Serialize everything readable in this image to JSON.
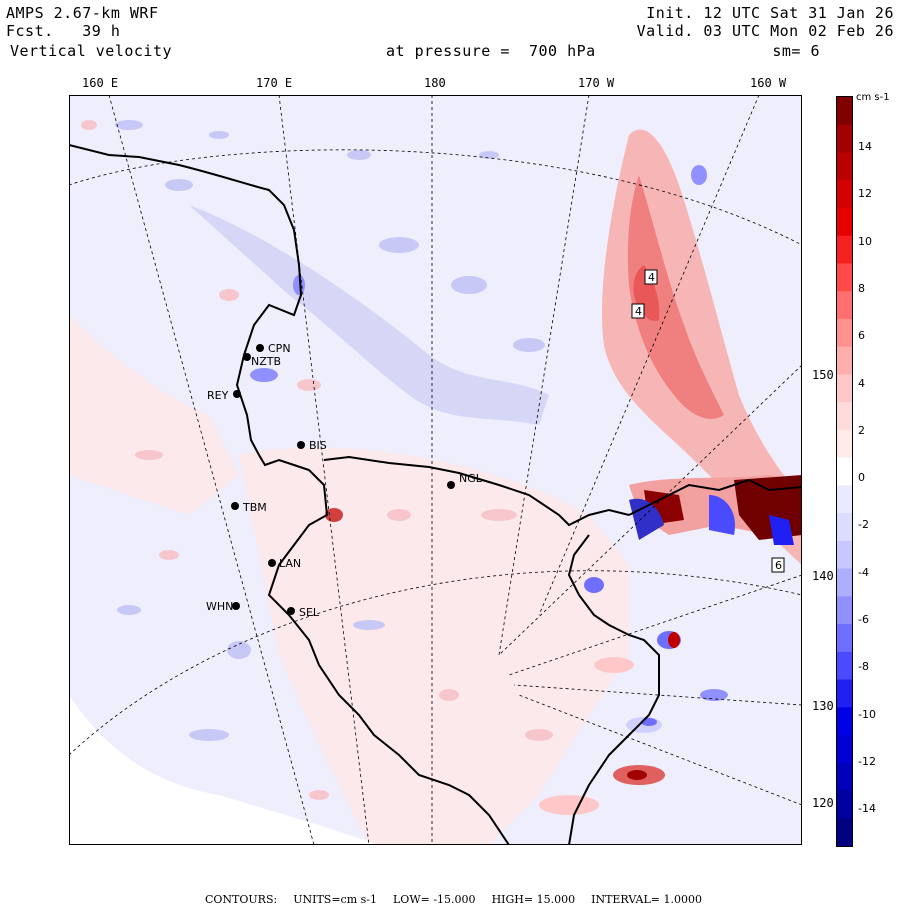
{
  "header": {
    "model": "AMPS 2.67-km WRF",
    "fcst_label": "Fcst.",
    "fcst_value": "39 h",
    "field": "Vertical velocity",
    "pressure_label": "at pressure =",
    "pressure_value": "700 hPa",
    "init": "Init. 12 UTC Sat 31 Jan 26",
    "valid": "Valid. 03 UTC Mon 02 Feb 26",
    "smoothing": "sm= 6"
  },
  "lon_labels": [
    "160 E",
    "170 E",
    "180",
    "170 W",
    "160 W"
  ],
  "lat_labels": [
    "150 W",
    "140 W",
    "130 W",
    "120 W"
  ],
  "stations": [
    "CPN",
    "NZTB",
    "REY",
    "BIS",
    "TBM",
    "NGL",
    "LAN",
    "WHN",
    "SEL"
  ],
  "maxima": [
    "4",
    "4",
    "6"
  ],
  "colorbar": {
    "units": "cm s-1",
    "tick_labels": [
      "14",
      "12",
      "10",
      "8",
      "6",
      "4",
      "2",
      "0",
      "-2",
      "-4",
      "-6",
      "-8",
      "-10",
      "-12",
      "-14"
    ],
    "colors": [
      "#800000",
      "#a00000",
      "#bb0000",
      "#d40000",
      "#e60000",
      "#f52020",
      "#ff4a4a",
      "#ff6f6f",
      "#ff9090",
      "#ffaeae",
      "#ffc8c8",
      "#ffdcdc",
      "#ffeaea",
      "#ffffff",
      "#eaeaff",
      "#dcdcff",
      "#c8c8ff",
      "#aeaeff",
      "#9090ff",
      "#6f6fff",
      "#4a4aff",
      "#2020f5",
      "#0000e6",
      "#0000d4",
      "#0000bb",
      "#0000a0",
      "#000080"
    ]
  },
  "footer": {
    "contours_label": "CONTOURS:",
    "units": "UNITS=cm s-1",
    "low": "LOW= -15.000",
    "high": "HIGH= 15.000",
    "interval": "INTERVAL= 1.0000"
  }
}
